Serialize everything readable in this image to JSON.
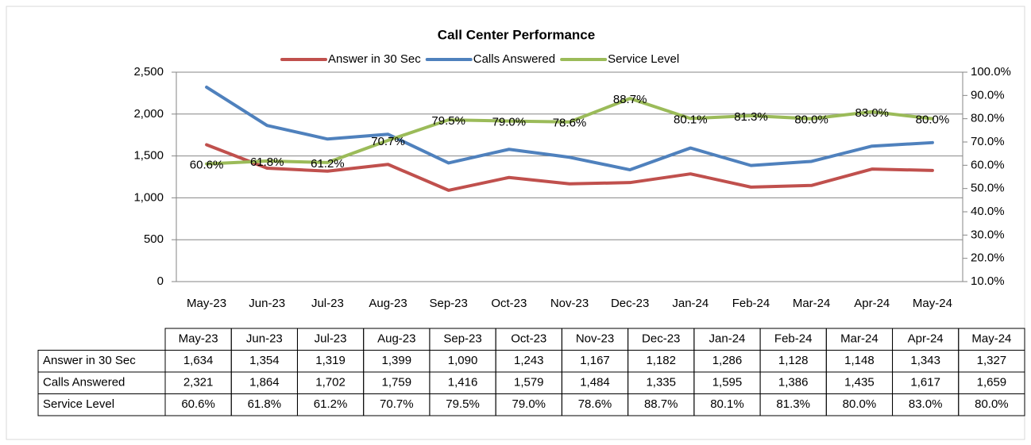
{
  "chart_data": {
    "type": "line",
    "title": "Call Center Performance",
    "categories": [
      "May-23",
      "Jun-23",
      "Jul-23",
      "Aug-23",
      "Sep-23",
      "Oct-23",
      "Nov-23",
      "Dec-23",
      "Jan-24",
      "Feb-24",
      "Mar-24",
      "Apr-24",
      "May-24"
    ],
    "series": [
      {
        "name": "Answer in 30 Sec",
        "color": "#c0504d",
        "values": [
          1634,
          1354,
          1319,
          1399,
          1090,
          1243,
          1167,
          1182,
          1286,
          1128,
          1148,
          1343,
          1327
        ],
        "value_labels": [
          "1,634",
          "1,354",
          "1,319",
          "1,399",
          "1,090",
          "1,243",
          "1,167",
          "1,182",
          "1,286",
          "1,128",
          "1,148",
          "1,343",
          "1,327"
        ]
      },
      {
        "name": "Calls Answered",
        "color": "#4f81bd",
        "values": [
          2321,
          1864,
          1702,
          1759,
          1416,
          1579,
          1484,
          1335,
          1595,
          1386,
          1435,
          1617,
          1659
        ],
        "value_labels": [
          "2,321",
          "1,864",
          "1,702",
          "1,759",
          "1,416",
          "1,579",
          "1,484",
          "1,335",
          "1,595",
          "1,386",
          "1,435",
          "1,617",
          "1,659"
        ]
      },
      {
        "name": "Service Level",
        "color": "#9bbb59",
        "axis": "y2",
        "values": [
          60.6,
          61.8,
          61.2,
          70.7,
          79.5,
          79.0,
          78.6,
          88.7,
          80.1,
          81.3,
          80.0,
          83.0,
          80.0
        ],
        "value_labels": [
          "60.6%",
          "61.8%",
          "61.2%",
          "70.7%",
          "79.5%",
          "79.0%",
          "78.6%",
          "88.7%",
          "80.1%",
          "81.3%",
          "80.0%",
          "83.0%",
          "80.0%"
        ]
      }
    ],
    "ylim": [
      0,
      2500
    ],
    "yticks": [
      0,
      500,
      {
        "value": 1000,
        "label": "1,000"
      },
      {
        "value": 1500,
        "label": "1,500"
      },
      {
        "value": 2000,
        "label": "2,000"
      },
      {
        "value": 2500,
        "label": "2,500"
      }
    ],
    "y2lim": [
      10,
      100
    ],
    "y2ticks": [
      {
        "value": 10,
        "label": "10.0%"
      },
      {
        "value": 20,
        "label": "20.0%"
      },
      {
        "value": 30,
        "label": "30.0%"
      },
      {
        "value": 40,
        "label": "40.0%"
      },
      {
        "value": 50,
        "label": "50.0%"
      },
      {
        "value": 60,
        "label": "60.0%"
      },
      {
        "value": 70,
        "label": "70.0%"
      },
      {
        "value": 80,
        "label": "80.0%"
      },
      {
        "value": 90,
        "label": "90.0%"
      },
      {
        "value": 100,
        "label": "100.0%"
      }
    ],
    "grid": true,
    "legend": "top"
  }
}
